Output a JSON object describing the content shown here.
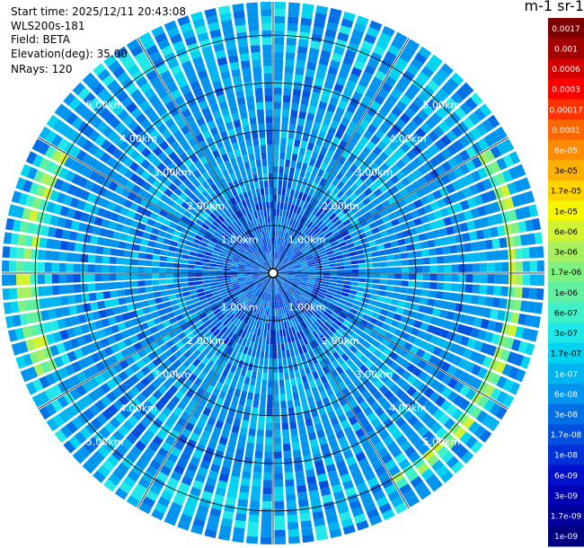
{
  "header": {
    "start_time": "Start time: 2025/12/11 20:43:08",
    "instrument": "WLS200s-181",
    "field": "Field: BETA",
    "elevation": "Elevation(deg): 35.00",
    "nrays": "NRays: 120"
  },
  "colorbar": {
    "unit": "m-1 sr-1",
    "labels": [
      "0.0017",
      "0.001",
      "0.0006",
      "0.0003",
      "0.00017",
      "0.0001",
      "6e-05",
      "3e-05",
      "1.7e-05",
      "1e-05",
      "6e-06",
      "3e-06",
      "1.7e-06",
      "1e-06",
      "6e-07",
      "3e-07",
      "1.7e-07",
      "1e-07",
      "6e-08",
      "3e-08",
      "1.7e-08",
      "1e-08",
      "6e-09",
      "3e-09",
      "1.7e-09",
      "1e-09"
    ],
    "colors": [
      "#7f0000",
      "#a50000",
      "#d40000",
      "#ff0000",
      "#ff3300",
      "#ff6600",
      "#ff8c00",
      "#ffb000",
      "#ffd400",
      "#f6f600",
      "#d0f230",
      "#a8f060",
      "#80f080",
      "#60f0a0",
      "#40f0c8",
      "#20e8e8",
      "#00d4f0",
      "#00b4f0",
      "#0094ee",
      "#0070e6",
      "#0050e0",
      "#0030d8",
      "#0010cc",
      "#0000b4",
      "#00009a",
      "#000080"
    ]
  },
  "chart_data": {
    "type": "ppi",
    "field": "BETA",
    "elevation_deg": 35.0,
    "n_rays": 120,
    "max_range_km": 5.7,
    "range_rings_km": [
      1,
      2,
      3,
      4,
      5
    ],
    "range_labels": [
      "1.00km",
      "2.00km",
      "3.00km",
      "4.00km",
      "5.00km"
    ],
    "dominant_value": "3e-08 to 1e-07 m-1 sr-1",
    "features": [
      {
        "description": "elevated backscatter band",
        "range_km": [
          5.0,
          5.3
        ],
        "azimuth_deg": [
          60,
          150
        ],
        "value": "1e-06 to 1e-05"
      },
      {
        "description": "elevated backscatter band",
        "range_km": [
          5.0,
          5.4
        ],
        "azimuth_deg": [
          245,
          300
        ],
        "value": "1e-06 to 1e-05"
      }
    ]
  }
}
